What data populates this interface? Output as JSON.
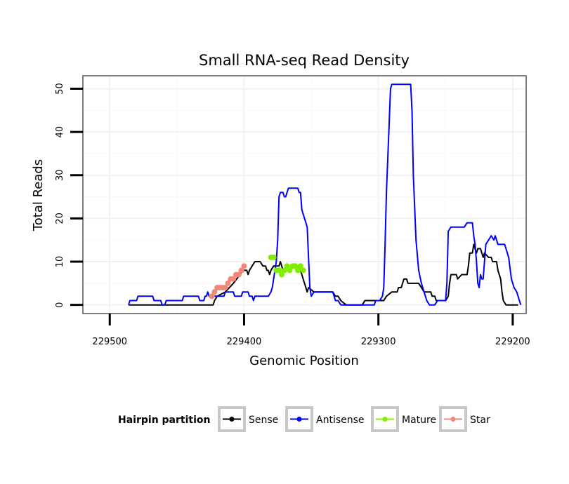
{
  "chart_data": {
    "type": "line",
    "title": "Small RNA-seq Read Density",
    "xlabel": "Genomic Position",
    "ylabel": "Total Reads",
    "x_reversed": true,
    "xlim": [
      229520,
      229190
    ],
    "ylim": [
      -2,
      53
    ],
    "xticks": [
      229500,
      229400,
      229300,
      229200
    ],
    "yticks": [
      0,
      10,
      20,
      30,
      40,
      50
    ],
    "grid": true,
    "legend_position": "bottom",
    "legend_title": "Hairpin partition",
    "series": [
      {
        "name": "Sense",
        "color": "#000000",
        "style": "line",
        "points": [
          [
            229486,
            0
          ],
          [
            229423,
            0
          ],
          [
            229422,
            1
          ],
          [
            229420,
            2
          ],
          [
            229414,
            3
          ],
          [
            229408,
            5
          ],
          [
            229403,
            7
          ],
          [
            229401,
            8
          ],
          [
            229398,
            8
          ],
          [
            229397,
            7
          ],
          [
            229396,
            8
          ],
          [
            229394,
            9
          ],
          [
            229392,
            10
          ],
          [
            229388,
            10
          ],
          [
            229386,
            9
          ],
          [
            229384,
            9
          ],
          [
            229383,
            8
          ],
          [
            229382,
            8
          ],
          [
            229381,
            7
          ],
          [
            229380,
            8
          ],
          [
            229378,
            9
          ],
          [
            229374,
            9
          ],
          [
            229373,
            10
          ],
          [
            229372,
            9
          ],
          [
            229371,
            8
          ],
          [
            229369,
            8
          ],
          [
            229368,
            9
          ],
          [
            229366,
            9
          ],
          [
            229364,
            9
          ],
          [
            229360,
            9
          ],
          [
            229358,
            8
          ],
          [
            229357,
            7
          ],
          [
            229355,
            5
          ],
          [
            229354,
            4
          ],
          [
            229353,
            3
          ],
          [
            229352,
            4
          ],
          [
            229348,
            3
          ],
          [
            229334,
            3
          ],
          [
            229332,
            2
          ],
          [
            229330,
            2
          ],
          [
            229328,
            1
          ],
          [
            229324,
            0
          ],
          [
            229312,
            0
          ],
          [
            229310,
            1
          ],
          [
            229296,
            1
          ],
          [
            229294,
            2
          ],
          [
            229290,
            3
          ],
          [
            229286,
            3
          ],
          [
            229285,
            4
          ],
          [
            229283,
            4
          ],
          [
            229281,
            6
          ],
          [
            229279,
            6
          ],
          [
            229278,
            5
          ],
          [
            229276,
            5
          ],
          [
            229275,
            5
          ],
          [
            229270,
            5
          ],
          [
            229268,
            4
          ],
          [
            229266,
            3
          ],
          [
            229261,
            3
          ],
          [
            229260,
            2
          ],
          [
            229258,
            2
          ],
          [
            229257,
            1
          ],
          [
            229250,
            1
          ],
          [
            229248,
            2
          ],
          [
            229247,
            5
          ],
          [
            229246,
            7
          ],
          [
            229242,
            7
          ],
          [
            229241,
            6
          ],
          [
            229238,
            7
          ],
          [
            229234,
            7
          ],
          [
            229233,
            9
          ],
          [
            229232,
            12
          ],
          [
            229230,
            12
          ],
          [
            229229,
            14
          ],
          [
            229227,
            12
          ],
          [
            229226,
            13
          ],
          [
            229224,
            13
          ],
          [
            229222,
            11
          ],
          [
            229221,
            12
          ],
          [
            229218,
            11
          ],
          [
            229216,
            11
          ],
          [
            229215,
            10
          ],
          [
            229212,
            10
          ],
          [
            229211,
            8
          ],
          [
            229209,
            6
          ],
          [
            229208,
            3
          ],
          [
            229207,
            1
          ],
          [
            229205,
            0
          ],
          [
            229202,
            0
          ],
          [
            229196,
            0
          ]
        ]
      },
      {
        "name": "Antisense",
        "color": "#0000ff",
        "style": "line",
        "points": [
          [
            229486,
            0
          ],
          [
            229485,
            1
          ],
          [
            229480,
            1
          ],
          [
            229479,
            2
          ],
          [
            229468,
            2
          ],
          [
            229467,
            1
          ],
          [
            229462,
            1
          ],
          [
            229461,
            0
          ],
          [
            229459,
            0
          ],
          [
            229458,
            1
          ],
          [
            229446,
            1
          ],
          [
            229445,
            2
          ],
          [
            229434,
            2
          ],
          [
            229433,
            1
          ],
          [
            229430,
            1
          ],
          [
            229429,
            2
          ],
          [
            229428,
            2
          ],
          [
            229427,
            3
          ],
          [
            229426,
            2
          ],
          [
            229415,
            2
          ],
          [
            229414,
            3
          ],
          [
            229408,
            3
          ],
          [
            229407,
            2
          ],
          [
            229402,
            2
          ],
          [
            229401,
            3
          ],
          [
            229400,
            3
          ],
          [
            229397,
            3
          ],
          [
            229396,
            2
          ],
          [
            229394,
            2
          ],
          [
            229393,
            1
          ],
          [
            229392,
            2
          ],
          [
            229382,
            2
          ],
          [
            229380,
            3
          ],
          [
            229379,
            4
          ],
          [
            229378,
            6
          ],
          [
            229376,
            10
          ],
          [
            229375,
            15
          ],
          [
            229374,
            25
          ],
          [
            229373,
            26
          ],
          [
            229371,
            26
          ],
          [
            229370,
            25
          ],
          [
            229369,
            25
          ],
          [
            229368,
            26
          ],
          [
            229367,
            27
          ],
          [
            229360,
            27
          ],
          [
            229359,
            26
          ],
          [
            229358,
            26
          ],
          [
            229357,
            22
          ],
          [
            229356,
            21
          ],
          [
            229354,
            19
          ],
          [
            229353,
            18
          ],
          [
            229352,
            11
          ],
          [
            229351,
            4
          ],
          [
            229350,
            2
          ],
          [
            229348,
            3
          ],
          [
            229334,
            3
          ],
          [
            229333,
            2
          ],
          [
            229332,
            1
          ],
          [
            229330,
            1
          ],
          [
            229328,
            0
          ],
          [
            229303,
            0
          ],
          [
            229302,
            1
          ],
          [
            229299,
            1
          ],
          [
            229297,
            2
          ],
          [
            229296,
            4
          ],
          [
            229295,
            14
          ],
          [
            229294,
            26
          ],
          [
            229292,
            42
          ],
          [
            229291,
            50
          ],
          [
            229290,
            51
          ],
          [
            229276,
            51
          ],
          [
            229275,
            45
          ],
          [
            229274,
            30
          ],
          [
            229272,
            15
          ],
          [
            229270,
            8
          ],
          [
            229268,
            5
          ],
          [
            229266,
            3
          ],
          [
            229264,
            1
          ],
          [
            229262,
            0
          ],
          [
            229258,
            0
          ],
          [
            229256,
            1
          ],
          [
            229250,
            1
          ],
          [
            229249,
            5
          ],
          [
            229248,
            17
          ],
          [
            229246,
            18
          ],
          [
            229236,
            18
          ],
          [
            229234,
            19
          ],
          [
            229230,
            19
          ],
          [
            229229,
            16
          ],
          [
            229228,
            14
          ],
          [
            229227,
            10
          ],
          [
            229226,
            5
          ],
          [
            229225,
            4
          ],
          [
            229224,
            7
          ],
          [
            229223,
            6
          ],
          [
            229222,
            6
          ],
          [
            229221,
            10
          ],
          [
            229220,
            14
          ],
          [
            229218,
            15
          ],
          [
            229216,
            16
          ],
          [
            229214,
            15
          ],
          [
            229213,
            16
          ],
          [
            229212,
            15
          ],
          [
            229211,
            14
          ],
          [
            229210,
            14
          ],
          [
            229206,
            14
          ],
          [
            229205,
            13
          ],
          [
            229203,
            11
          ],
          [
            229201,
            6
          ],
          [
            229199,
            4
          ],
          [
            229197,
            3
          ],
          [
            229195,
            1
          ],
          [
            229194,
            0
          ]
        ]
      },
      {
        "name": "Mature",
        "color": "#80ee00",
        "style": "points",
        "points": [
          [
            229380,
            11
          ],
          [
            229378,
            11
          ],
          [
            229376,
            8
          ],
          [
            229374,
            8
          ],
          [
            229372,
            7
          ],
          [
            229370,
            8
          ],
          [
            229368,
            9
          ],
          [
            229366,
            8
          ],
          [
            229364,
            9
          ],
          [
            229362,
            9
          ],
          [
            229360,
            8
          ],
          [
            229358,
            9
          ],
          [
            229356,
            8
          ]
        ]
      },
      {
        "name": "Star",
        "color": "#f08878",
        "style": "points",
        "points": [
          [
            229424,
            2
          ],
          [
            229422,
            3
          ],
          [
            229420,
            4
          ],
          [
            229418,
            4
          ],
          [
            229416,
            4
          ],
          [
            229414,
            4
          ],
          [
            229412,
            5
          ],
          [
            229410,
            6
          ],
          [
            229408,
            6
          ],
          [
            229406,
            7
          ],
          [
            229404,
            7
          ],
          [
            229402,
            8
          ],
          [
            229400,
            9
          ]
        ]
      }
    ]
  }
}
